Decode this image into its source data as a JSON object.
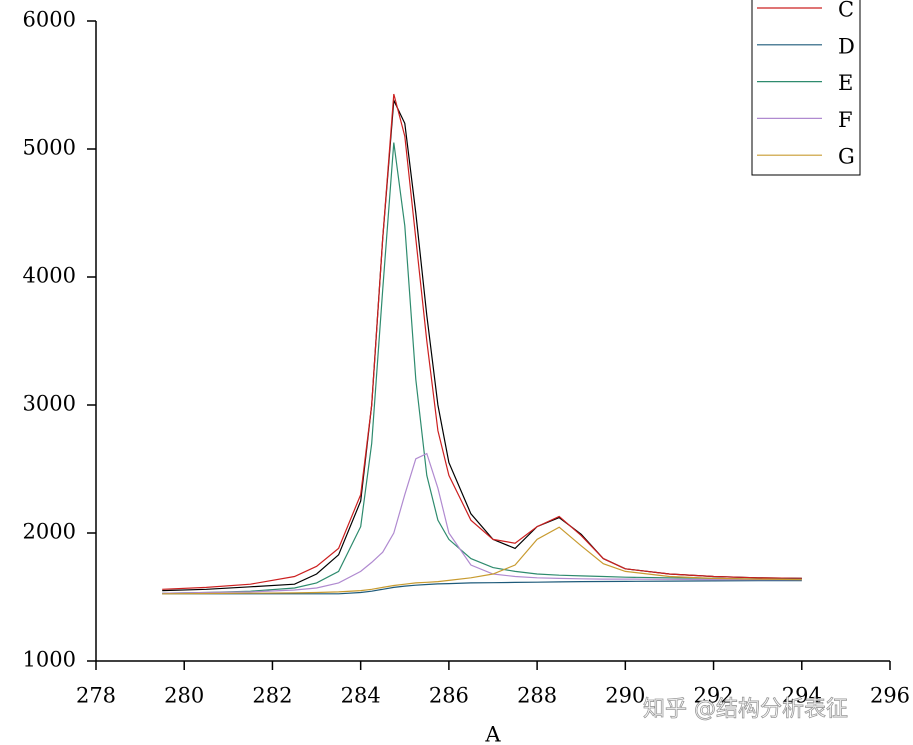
{
  "chart_data": {
    "type": "line",
    "xlabel": "A",
    "watermark": "知乎 @结构分析表征",
    "xlim": [
      278,
      296
    ],
    "xticks": [
      278,
      280,
      282,
      284,
      286,
      288,
      290,
      292,
      294,
      296
    ],
    "ylim": [
      1000,
      6000
    ],
    "yticks": [
      1000,
      2000,
      3000,
      4000,
      5000,
      6000
    ],
    "x": [
      279.5,
      280.5,
      281.5,
      282.5,
      283,
      283.5,
      284,
      284.25,
      284.5,
      284.75,
      285,
      285.25,
      285.5,
      285.75,
      286,
      286.5,
      287,
      287.5,
      288,
      288.5,
      289,
      289.5,
      290,
      291,
      292,
      293,
      294
    ],
    "series": [
      {
        "color": "#000000",
        "values": [
          1550,
          1560,
          1580,
          1600,
          1680,
          1830,
          2250,
          3000,
          4300,
          5380,
          5200,
          4500,
          3700,
          3000,
          2550,
          2150,
          1950,
          1880,
          2050,
          2120,
          1990,
          1800,
          1720,
          1680,
          1660,
          1650,
          1645
        ]
      },
      {
        "name": "C",
        "color": "#cc2020",
        "values": [
          1560,
          1575,
          1600,
          1660,
          1740,
          1880,
          2300,
          3000,
          4300,
          5430,
          5100,
          4300,
          3500,
          2800,
          2450,
          2100,
          1950,
          1920,
          2050,
          2130,
          1980,
          1800,
          1720,
          1680,
          1660,
          1650,
          1645
        ]
      },
      {
        "name": "D",
        "color": "#1d5a7a",
        "values": [
          1525,
          1525,
          1525,
          1525,
          1525,
          1525,
          1535,
          1545,
          1560,
          1575,
          1585,
          1592,
          1598,
          1602,
          1605,
          1610,
          1612,
          1614,
          1616,
          1618,
          1620,
          1621,
          1622,
          1624,
          1626,
          1627,
          1628
        ]
      },
      {
        "name": "E",
        "color": "#2e8b6e",
        "values": [
          1530,
          1535,
          1545,
          1570,
          1610,
          1700,
          2050,
          2700,
          3900,
          5050,
          4400,
          3200,
          2450,
          2100,
          1950,
          1800,
          1730,
          1700,
          1680,
          1670,
          1665,
          1660,
          1655,
          1650,
          1645,
          1640,
          1638
        ]
      },
      {
        "name": "F",
        "color": "#b08ad0",
        "values": [
          1530,
          1535,
          1540,
          1555,
          1570,
          1610,
          1700,
          1770,
          1850,
          2000,
          2300,
          2580,
          2620,
          2350,
          2000,
          1750,
          1680,
          1660,
          1650,
          1645,
          1642,
          1640,
          1640,
          1638,
          1636,
          1635,
          1634
        ]
      },
      {
        "name": "G",
        "color": "#c89b30",
        "values": [
          1525,
          1527,
          1530,
          1532,
          1535,
          1540,
          1550,
          1560,
          1575,
          1590,
          1600,
          1610,
          1615,
          1620,
          1630,
          1650,
          1680,
          1750,
          1950,
          2045,
          1900,
          1760,
          1700,
          1660,
          1645,
          1640,
          1635
        ]
      }
    ]
  }
}
